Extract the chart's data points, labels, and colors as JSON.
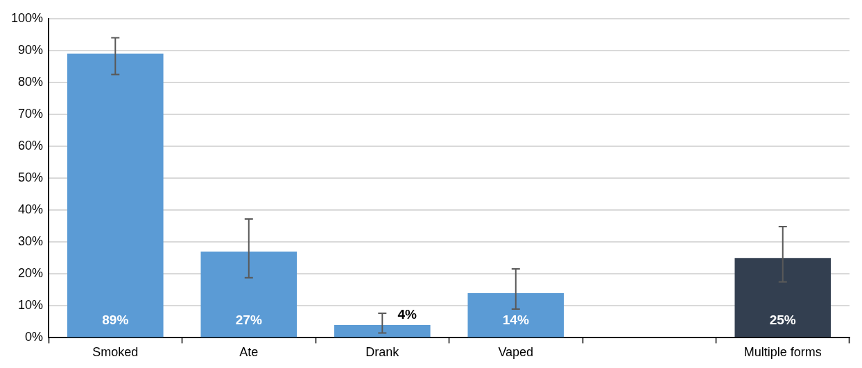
{
  "chart_data": {
    "type": "bar",
    "categories": [
      "Smoked",
      "Ate",
      "Drank",
      "Vaped",
      null,
      "Multiple forms"
    ],
    "values": [
      89,
      27,
      4,
      14,
      null,
      25
    ],
    "colors": [
      "#5b9bd5",
      "#5b9bd5",
      "#5b9bd5",
      "#5b9bd5",
      "#5b9bd5",
      "#333f50"
    ],
    "errors": [
      [
        82.5,
        94
      ],
      [
        18.8,
        37.2
      ],
      [
        1.5,
        7.7
      ],
      [
        9,
        21.6
      ],
      null,
      [
        17.5,
        34.8
      ]
    ],
    "ylim": [
      0,
      100
    ],
    "yticks": [
      {
        "value": 0,
        "label": "0%"
      },
      {
        "value": 10,
        "label": "10%"
      },
      {
        "value": 20,
        "label": "20%"
      },
      {
        "value": 30,
        "label": "30%"
      },
      {
        "value": 40,
        "label": "40%"
      },
      {
        "value": 50,
        "label": "50%"
      },
      {
        "value": 60,
        "label": "60%"
      },
      {
        "value": 70,
        "label": "70%"
      },
      {
        "value": 80,
        "label": "80%"
      },
      {
        "value": 90,
        "label": "90%"
      },
      {
        "value": 100,
        "label": "100%"
      }
    ],
    "value_labels": [
      "89%",
      "27%",
      "4%",
      "14%",
      null,
      "25%"
    ],
    "grid": "y",
    "legend": false
  }
}
